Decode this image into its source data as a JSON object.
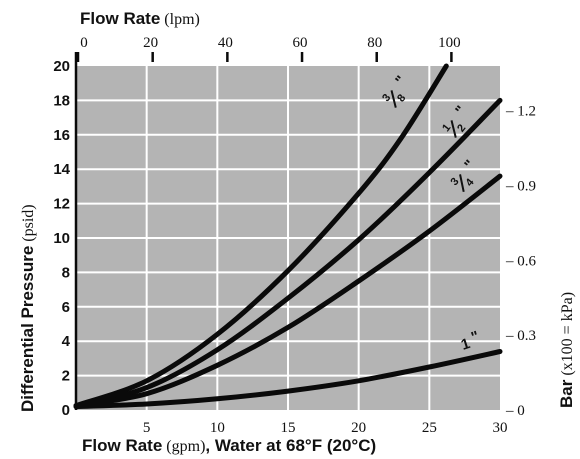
{
  "chart_data": {
    "type": "line",
    "title": "",
    "top_axis": {
      "label_bold": "Flow Rate",
      "label_unit": "(lpm)",
      "ticks": [
        "0",
        "20",
        "40",
        "60",
        "80",
        "100"
      ],
      "tick_values": [
        0,
        20,
        40,
        60,
        80,
        100
      ]
    },
    "x_axis": {
      "label_bold_1": "Flow Rate",
      "label_unit": "(gpm)",
      "label_bold_2": ", Water at 68°F (20°C)",
      "range": [
        0,
        30
      ],
      "ticks": [
        "5",
        "10",
        "15",
        "20",
        "25",
        "30"
      ],
      "tick_values": [
        5,
        10,
        15,
        20,
        25,
        30
      ]
    },
    "y_axis": {
      "label_bold": "Differential Pressure",
      "label_unit": "(psid)",
      "range": [
        0,
        20
      ],
      "ticks": [
        "0",
        "2",
        "4",
        "6",
        "8",
        "10",
        "12",
        "14",
        "16",
        "18",
        "20"
      ],
      "tick_values": [
        0,
        2,
        4,
        6,
        8,
        10,
        12,
        14,
        16,
        18,
        20
      ]
    },
    "right_axis": {
      "label_bold": "Bar",
      "label_unit": "(x100 = kPa)",
      "ticks": [
        "– 0",
        "– 0.3",
        "– 0.6",
        "– 0.9",
        "– 1.2"
      ],
      "tick_values": [
        0,
        0.3,
        0.6,
        0.9,
        1.2
      ],
      "bar_per_psi": 0.0689476
    },
    "grid": true,
    "series": [
      {
        "name": "3/8 \"",
        "x": [
          0,
          5,
          10,
          15,
          20,
          23,
          26.2
        ],
        "y": [
          0.25,
          1.7,
          4.4,
          8.1,
          12.6,
          15.8,
          20
        ]
      },
      {
        "name": "1/2 \"",
        "x": [
          0,
          5,
          10,
          15,
          20,
          25,
          30
        ],
        "y": [
          0.25,
          1.3,
          3.5,
          6.5,
          9.9,
          13.8,
          18
        ]
      },
      {
        "name": "3/4 \"",
        "x": [
          0,
          5,
          10,
          15,
          20,
          25,
          30
        ],
        "y": [
          0.25,
          0.95,
          2.6,
          4.8,
          7.5,
          10.4,
          13.6
        ]
      },
      {
        "name": "1 \"",
        "x": [
          0,
          5,
          10,
          15,
          20,
          25,
          30
        ],
        "y": [
          0.2,
          0.35,
          0.65,
          1.1,
          1.7,
          2.5,
          3.4
        ]
      }
    ],
    "series_labels": [
      {
        "num": "3",
        "den": "8",
        "suffix": "\""
      },
      {
        "num": "1",
        "den": "2",
        "suffix": "\""
      },
      {
        "num": "3",
        "den": "4",
        "suffix": "\""
      },
      {
        "num": "1",
        "den": "",
        "suffix": "\""
      }
    ],
    "colors": {
      "plot_bg": "#b4b4b4",
      "grid": "#ffffff",
      "curve": "#0a0a0a",
      "text": "#111111"
    }
  }
}
